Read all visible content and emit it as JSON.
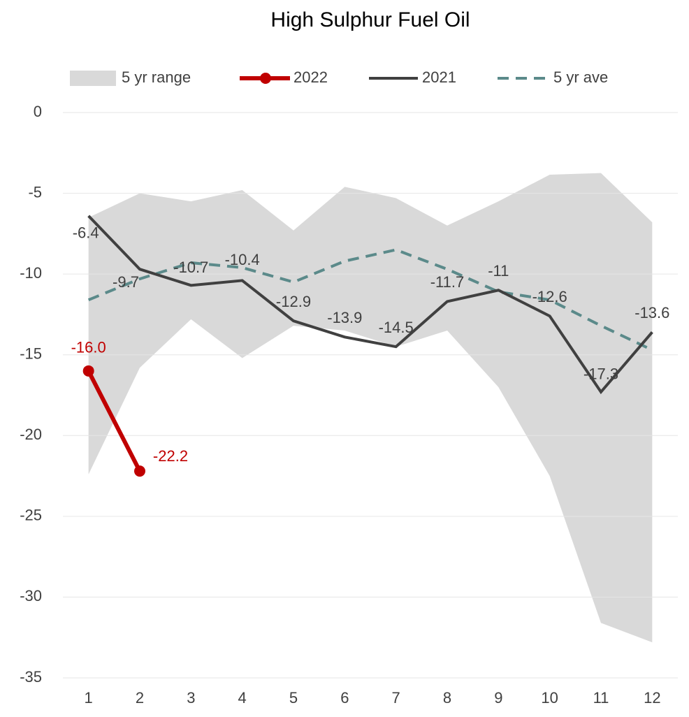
{
  "chart_data": {
    "type": "line",
    "title": "High Sulphur Fuel Oil",
    "categories": [
      "1",
      "2",
      "3",
      "4",
      "5",
      "6",
      "7",
      "8",
      "9",
      "10",
      "11",
      "12"
    ],
    "ylim": [
      -35,
      0
    ],
    "yticks": [
      -35,
      -30,
      -25,
      -20,
      -15,
      -10,
      -5,
      0
    ],
    "grid": true,
    "legend": "top",
    "range": {
      "name": "5 yr range",
      "color": "#d9d9d9",
      "lower": [
        -22.4,
        -15.8,
        -12.8,
        -15.2,
        -13.2,
        -13.5,
        -14.5,
        -13.5,
        -17.0,
        -22.5,
        -31.6,
        -32.8
      ],
      "upper": [
        -6.5,
        -5.0,
        -5.5,
        -4.8,
        -7.3,
        -4.6,
        -5.3,
        -7.0,
        -5.5,
        -3.85,
        -3.75,
        -6.8
      ]
    },
    "series": [
      {
        "name": "2022",
        "color": "#c00000",
        "values": [
          -16.0,
          -22.2,
          null,
          null,
          null,
          null,
          null,
          null,
          null,
          null,
          null,
          null
        ],
        "value_labels": [
          "-16.0",
          "-22.2",
          null,
          null,
          null,
          null,
          null,
          null,
          null,
          null,
          null,
          null
        ]
      },
      {
        "name": "2021",
        "color": "#404040",
        "values": [
          -6.4,
          -9.7,
          -10.7,
          -10.4,
          -12.9,
          -13.9,
          -14.5,
          -11.7,
          -11.0,
          -12.6,
          -17.3,
          -13.6
        ]
      },
      {
        "name": "5 yr ave",
        "color": "#5b8a8a",
        "dashed": true,
        "values": [
          -11.6,
          -10.3,
          -9.3,
          -9.6,
          -10.5,
          -9.2,
          -8.5,
          -9.7,
          -11.1,
          -11.6,
          -13.2,
          -14.7
        ]
      }
    ]
  }
}
